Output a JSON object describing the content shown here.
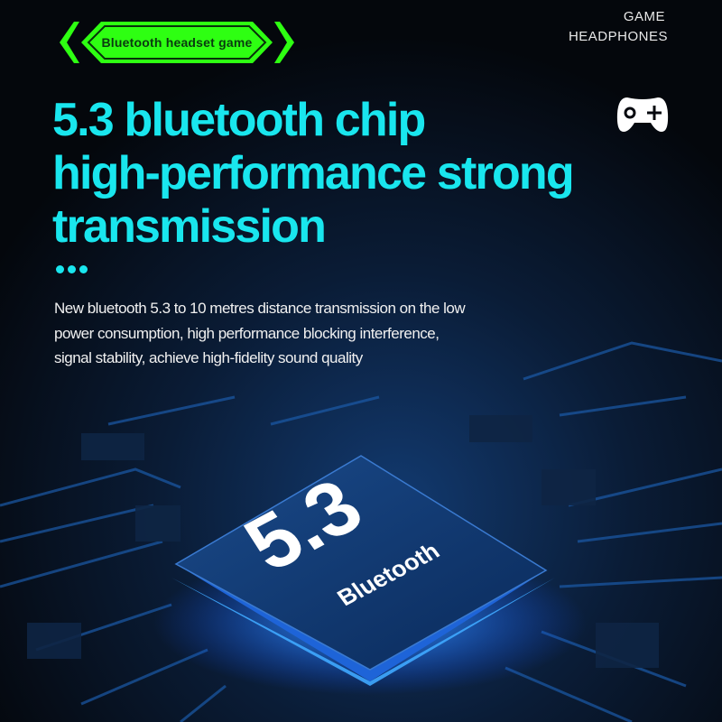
{
  "badge": {
    "label": "Bluetooth headset game",
    "color": "#2eff12"
  },
  "corner": {
    "line1": "GAME",
    "line2": "HEADPHONES",
    "icon": "gamepad-icon"
  },
  "headline": {
    "lines": [
      "5.3 bluetooth chip",
      "high-performance strong",
      "transmission"
    ],
    "color": "#19e6ee"
  },
  "description": {
    "lines": [
      "New bluetooth 5.3 to 10 metres distance transmission on the low",
      "power consumption, high performance blocking interference,",
      "signal stability, achieve high-fidelity sound quality"
    ]
  },
  "chip": {
    "version": "5.3",
    "label": "Bluetooth",
    "glow_color": "#2a7bff"
  }
}
